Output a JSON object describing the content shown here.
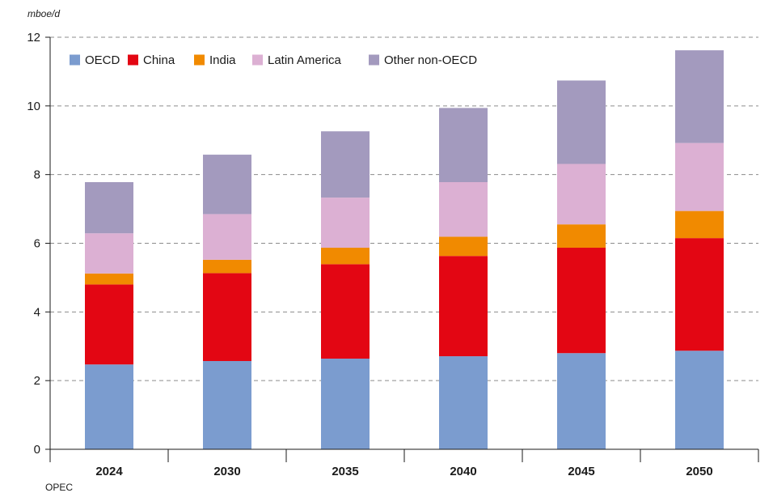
{
  "chart_data": {
    "type": "bar",
    "stacked": true,
    "ylabel": "mboe/d",
    "ylim": [
      0,
      12
    ],
    "yticks": [
      0,
      2,
      4,
      6,
      8,
      10,
      12
    ],
    "grid": "horizontal-dashed",
    "legend_position": "top-left",
    "categories": [
      "2024",
      "2030",
      "2035",
      "2040",
      "2045",
      "2050"
    ],
    "series": [
      {
        "name": "OECD",
        "color": "#7b9ccf",
        "values": [
          2.47,
          2.57,
          2.64,
          2.71,
          2.8,
          2.87
        ]
      },
      {
        "name": "China",
        "color": "#e30613",
        "values": [
          2.33,
          2.56,
          2.75,
          2.92,
          3.07,
          3.28
        ]
      },
      {
        "name": "India",
        "color": "#f18a00",
        "values": [
          0.32,
          0.39,
          0.48,
          0.56,
          0.68,
          0.79
        ]
      },
      {
        "name": "Latin America",
        "color": "#dcb0d3",
        "values": [
          1.17,
          1.33,
          1.46,
          1.59,
          1.76,
          1.98
        ]
      },
      {
        "name": "Other non-OECD",
        "color": "#a39abe",
        "values": [
          1.49,
          1.73,
          1.93,
          2.16,
          2.43,
          2.7
        ]
      }
    ],
    "source": "OPEC"
  }
}
